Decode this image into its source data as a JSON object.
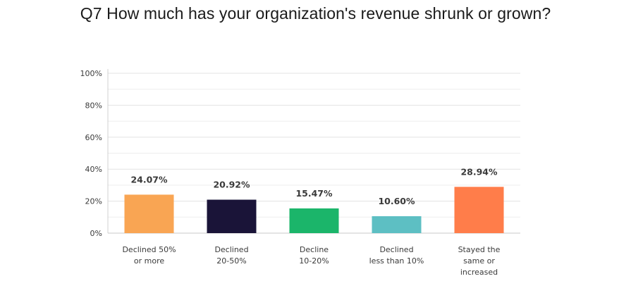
{
  "chart_data": {
    "type": "bar",
    "title": "Q7 How much has your organization's revenue shrunk or grown?",
    "xlabel": "",
    "ylabel": "",
    "ylim": [
      0,
      100
    ],
    "yticks": [
      "0%",
      "20%",
      "40%",
      "60%",
      "80%",
      "100%"
    ],
    "grid": true,
    "categories": [
      [
        "Declined 50%",
        "or more"
      ],
      [
        "Declined",
        "20-50%"
      ],
      [
        "Decline",
        "10-20%"
      ],
      [
        "Declined",
        "less than 10%"
      ],
      [
        "Stayed the",
        "same or",
        "increased"
      ]
    ],
    "values": [
      24.07,
      20.92,
      15.47,
      10.6,
      28.94
    ],
    "value_labels": [
      "24.07%",
      "20.92%",
      "15.47%",
      "10.60%",
      "28.94%"
    ],
    "colors": [
      "#f9a553",
      "#1a1438",
      "#1bb56a",
      "#5dbfc3",
      "#ff7d4a"
    ]
  }
}
